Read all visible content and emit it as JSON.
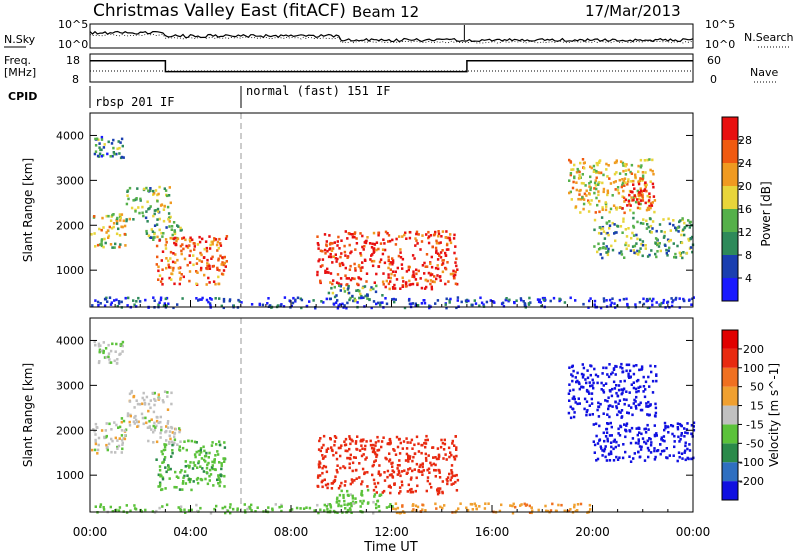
{
  "header": {
    "title": "Christmas Valley East (fitACF)",
    "beam": "Beam 12",
    "date": "17/Mar/2013"
  },
  "strips": {
    "nsky_label": "N.Sky",
    "nsearch_label": "N.Search",
    "noise_ticks_left": [
      "10^5",
      "10^0"
    ],
    "noise_ticks_right": [
      "10^5",
      "10^0"
    ],
    "freq_label": "Freq.",
    "freq_unit": "[MHz]",
    "freq_ticks": [
      "18",
      "8"
    ],
    "nave_label": "Nave",
    "nave_ticks": [
      "60",
      "0"
    ],
    "cpid_label": "CPID",
    "cpid_segments": [
      {
        "label": "rbsp 201 IF",
        "start_h": 0
      },
      {
        "label": "normal (fast) 151 IF",
        "start_h": 6
      }
    ],
    "freq_steps": [
      {
        "start_h": 0,
        "end_h": 3,
        "level": 0.8
      },
      {
        "start_h": 3,
        "end_h": 15,
        "level": 0.35
      },
      {
        "start_h": 15,
        "end_h": 24,
        "level": 0.8
      }
    ]
  },
  "chart_data": [
    {
      "type": "heatmap",
      "ylabel": "Slant Range [km]",
      "xlim_hours": [
        0,
        24
      ],
      "ylim_km": [
        180,
        4500
      ],
      "yticks": [
        "1000",
        "2000",
        "3000",
        "4000"
      ],
      "colorbar": {
        "label": "Power [dB]",
        "ticks": [
          "4",
          "8",
          "12",
          "16",
          "20",
          "24",
          "28"
        ],
        "colors": [
          "#1a1aff",
          "#1a3fb0",
          "#2e8a5a",
          "#55b04a",
          "#e8d53a",
          "#f09a20",
          "#f05a10",
          "#e81010"
        ]
      },
      "echo_regions": [
        {
          "t0": 0.0,
          "t1": 1.4,
          "r0": 1500,
          "r1": 2300,
          "level": 0.55
        },
        {
          "t0": 1.4,
          "t1": 3.2,
          "r0": 2100,
          "r1": 2900,
          "level": 0.45
        },
        {
          "t0": 0.1,
          "t1": 1.3,
          "r0": 3500,
          "r1": 4000,
          "level": 0.3
        },
        {
          "t0": 2.2,
          "t1": 3.6,
          "r0": 1700,
          "r1": 2100,
          "level": 0.4
        },
        {
          "t0": 2.6,
          "t1": 5.4,
          "r0": 700,
          "r1": 1800,
          "level": 0.8
        },
        {
          "t0": 9.0,
          "t1": 11.0,
          "r0": 700,
          "r1": 1900,
          "level": 0.95
        },
        {
          "t0": 11.1,
          "t1": 14.6,
          "r0": 600,
          "r1": 1900,
          "level": 0.9
        },
        {
          "t0": 9.4,
          "t1": 11.6,
          "r0": 300,
          "r1": 700,
          "level": 0.35
        },
        {
          "t0": 19.0,
          "t1": 22.5,
          "r0": 2300,
          "r1": 3500,
          "level": 0.6
        },
        {
          "t0": 21.0,
          "t1": 22.4,
          "r0": 2400,
          "r1": 3100,
          "level": 0.9
        },
        {
          "t0": 20.0,
          "t1": 24.0,
          "r0": 1300,
          "r1": 2200,
          "level": 0.4
        },
        {
          "t0": 0.0,
          "t1": 24.0,
          "r0": 180,
          "r1": 420,
          "level": 0.12
        }
      ]
    },
    {
      "type": "heatmap",
      "ylabel": "Slant Range [km]",
      "xlabel": "Time UT",
      "xlim_hours": [
        0,
        24
      ],
      "ylim_km": [
        180,
        4500
      ],
      "xticks": [
        "00:00",
        "04:00",
        "08:00",
        "12:00",
        "16:00",
        "20:00",
        "00:00"
      ],
      "yticks": [
        "1000",
        "2000",
        "3000",
        "4000"
      ],
      "colorbar": {
        "label": "Velocity [m s^-1]",
        "ticks": [
          "200",
          "100",
          "50",
          "15",
          "-15",
          "-50",
          "-100",
          "-200"
        ],
        "colors": [
          "#1010e0",
          "#2f6fc0",
          "#2a8a4a",
          "#5bc23a",
          "#c0c0c0",
          "#f0a030",
          "#f07020",
          "#e82a10",
          "#e00000"
        ]
      },
      "echo_regions": [
        {
          "t0": 0.0,
          "t1": 1.4,
          "r0": 1500,
          "r1": 2300,
          "vel": 0
        },
        {
          "t0": 1.4,
          "t1": 3.2,
          "r0": 2100,
          "r1": 2900,
          "vel": 0
        },
        {
          "t0": 0.1,
          "t1": 1.3,
          "r0": 3500,
          "r1": 4000,
          "vel": 5
        },
        {
          "t0": 2.2,
          "t1": 3.6,
          "r0": 1700,
          "r1": 2100,
          "vel": 0
        },
        {
          "t0": 2.6,
          "t1": 5.4,
          "r0": 700,
          "r1": 1800,
          "vel": 40
        },
        {
          "t0": 9.0,
          "t1": 11.0,
          "r0": 700,
          "r1": 1900,
          "vel": -150
        },
        {
          "t0": 11.1,
          "t1": 14.6,
          "r0": 600,
          "r1": 1900,
          "vel": -130
        },
        {
          "t0": 9.4,
          "t1": 11.6,
          "r0": 300,
          "r1": 700,
          "vel": 30
        },
        {
          "t0": 19.0,
          "t1": 22.5,
          "r0": 2300,
          "r1": 3500,
          "vel": 250
        },
        {
          "t0": 20.0,
          "t1": 24.0,
          "r0": 1300,
          "r1": 2200,
          "vel": 220
        },
        {
          "t0": 12.0,
          "t1": 20.0,
          "r0": 180,
          "r1": 400,
          "vel": -40
        },
        {
          "t0": 0.0,
          "t1": 12.0,
          "r0": 180,
          "r1": 380,
          "vel": 30
        }
      ]
    }
  ]
}
